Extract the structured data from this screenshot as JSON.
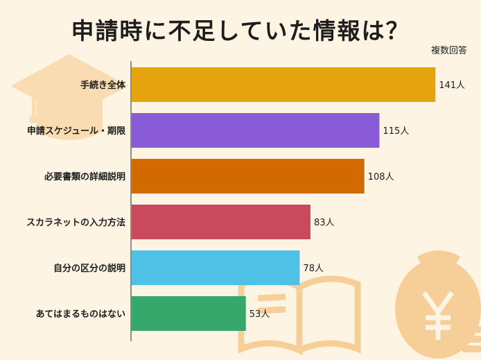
{
  "title": "申請時に不足していた情報は？",
  "note": "複数回答",
  "colors": {
    "background": "#fdf4e3",
    "decoration": "#f8dcb0",
    "axis": "#222222"
  },
  "chart_data": {
    "type": "bar",
    "orientation": "horizontal",
    "title": "申請時に不足していた情報は？",
    "note": "複数回答",
    "unit": "人",
    "categories": [
      "手続き全体",
      "申請スケジュール・期限",
      "必要書類の詳細説明",
      "スカラネットの入力方法",
      "自分の区分の説明",
      "あてはまるものはない"
    ],
    "values": [
      141,
      115,
      108,
      83,
      78,
      53
    ],
    "value_labels": [
      "141人",
      "115人",
      "108人",
      "83人",
      "78人",
      "53人"
    ],
    "colors": [
      "#e5a30e",
      "#8a5bd6",
      "#d36a00",
      "#c94a5d",
      "#4fc1e6",
      "#37a86b"
    ],
    "xlim": [
      0,
      148
    ],
    "grid": false,
    "legend": "none"
  }
}
